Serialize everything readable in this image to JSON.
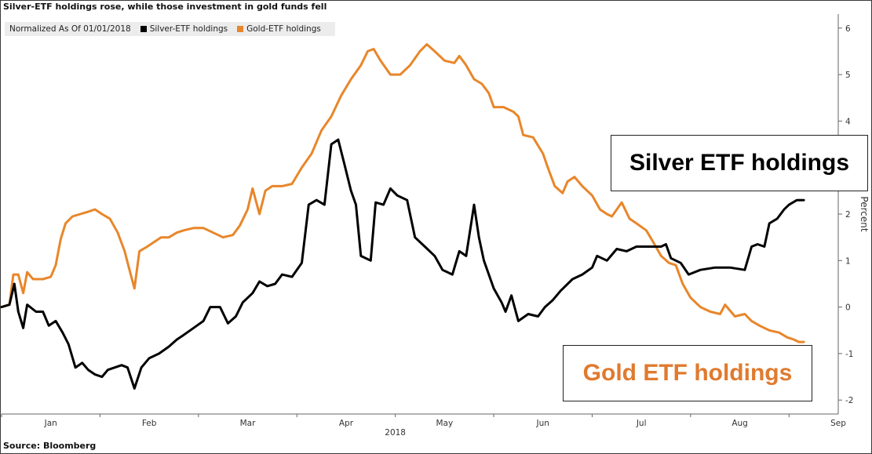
{
  "title": "Silver-ETF holdings rose, while those investment in gold funds fell",
  "legend": {
    "normalized_label": "Normalized As Of 01/01/2018",
    "items": [
      {
        "label": "Silver-ETF holdings",
        "color": "#000000"
      },
      {
        "label": "Gold-ETF holdings",
        "color": "#e8862a"
      }
    ]
  },
  "source": "Source: Bloomberg",
  "annotations": {
    "silver_box": "Silver ETF holdings",
    "gold_box": "Gold ETF holdings"
  },
  "chart_data": {
    "type": "line",
    "title": "Silver-ETF holdings rose, while those investment in gold funds fell",
    "xlabel": "2018",
    "ylabel": "Percent",
    "x_tick_labels": [
      "Jan",
      "Feb",
      "Mar",
      "Apr",
      "May",
      "Jun",
      "Jul",
      "Aug",
      "Sep"
    ],
    "x_unit": "month index (0 = 01/01/2018)",
    "xlim": [
      0,
      8.5
    ],
    "ylim": [
      -2.3,
      6.3
    ],
    "y_ticks": [
      -2,
      -1,
      0,
      1,
      2,
      3,
      4,
      5,
      6
    ],
    "y_axis_side": "right",
    "grid": false,
    "legend_position": "top-left",
    "series": [
      {
        "name": "Silver-ETF holdings",
        "color": "#000000",
        "points": [
          [
            0.0,
            0.0
          ],
          [
            0.08,
            0.05
          ],
          [
            0.13,
            0.5
          ],
          [
            0.17,
            -0.1
          ],
          [
            0.22,
            -0.45
          ],
          [
            0.26,
            0.05
          ],
          [
            0.35,
            -0.1
          ],
          [
            0.42,
            -0.1
          ],
          [
            0.48,
            -0.4
          ],
          [
            0.55,
            -0.3
          ],
          [
            0.62,
            -0.55
          ],
          [
            0.68,
            -0.8
          ],
          [
            0.75,
            -1.3
          ],
          [
            0.82,
            -1.2
          ],
          [
            0.88,
            -1.35
          ],
          [
            0.95,
            -1.45
          ],
          [
            1.02,
            -1.5
          ],
          [
            1.08,
            -1.35
          ],
          [
            1.15,
            -1.3
          ],
          [
            1.22,
            -1.25
          ],
          [
            1.28,
            -1.3
          ],
          [
            1.35,
            -1.75
          ],
          [
            1.42,
            -1.3
          ],
          [
            1.5,
            -1.1
          ],
          [
            1.6,
            -1.0
          ],
          [
            1.7,
            -0.85
          ],
          [
            1.78,
            -0.7
          ],
          [
            1.85,
            -0.6
          ],
          [
            1.95,
            -0.45
          ],
          [
            2.05,
            -0.3
          ],
          [
            2.12,
            0.0
          ],
          [
            2.22,
            0.0
          ],
          [
            2.3,
            -0.35
          ],
          [
            2.38,
            -0.2
          ],
          [
            2.45,
            0.1
          ],
          [
            2.55,
            0.3
          ],
          [
            2.62,
            0.55
          ],
          [
            2.7,
            0.45
          ],
          [
            2.78,
            0.5
          ],
          [
            2.85,
            0.7
          ],
          [
            2.95,
            0.65
          ],
          [
            3.05,
            0.95
          ],
          [
            3.12,
            2.2
          ],
          [
            3.2,
            2.3
          ],
          [
            3.28,
            2.2
          ],
          [
            3.35,
            3.5
          ],
          [
            3.42,
            3.6
          ],
          [
            3.48,
            3.1
          ],
          [
            3.55,
            2.5
          ],
          [
            3.6,
            2.2
          ],
          [
            3.65,
            1.1
          ],
          [
            3.75,
            1.0
          ],
          [
            3.8,
            2.25
          ],
          [
            3.88,
            2.2
          ],
          [
            3.95,
            2.55
          ],
          [
            4.02,
            2.4
          ],
          [
            4.12,
            2.3
          ],
          [
            4.2,
            1.5
          ],
          [
            4.3,
            1.3
          ],
          [
            4.4,
            1.1
          ],
          [
            4.48,
            0.8
          ],
          [
            4.58,
            0.7
          ],
          [
            4.65,
            1.2
          ],
          [
            4.72,
            1.1
          ],
          [
            4.8,
            2.2
          ],
          [
            4.85,
            1.5
          ],
          [
            4.9,
            1.0
          ],
          [
            5.0,
            0.4
          ],
          [
            5.08,
            0.1
          ],
          [
            5.12,
            -0.1
          ],
          [
            5.18,
            0.25
          ],
          [
            5.25,
            -0.3
          ],
          [
            5.35,
            -0.15
          ],
          [
            5.45,
            -0.2
          ],
          [
            5.52,
            0.0
          ],
          [
            5.6,
            0.15
          ],
          [
            5.68,
            0.35
          ],
          [
            5.8,
            0.6
          ],
          [
            5.9,
            0.7
          ],
          [
            6.0,
            0.85
          ],
          [
            6.05,
            1.1
          ],
          [
            6.15,
            1.0
          ],
          [
            6.25,
            1.25
          ],
          [
            6.35,
            1.2
          ],
          [
            6.45,
            1.3
          ],
          [
            6.6,
            1.3
          ],
          [
            6.7,
            1.3
          ],
          [
            6.75,
            1.35
          ],
          [
            6.8,
            1.05
          ],
          [
            6.9,
            0.95
          ],
          [
            6.98,
            0.7
          ],
          [
            7.1,
            0.8
          ],
          [
            7.25,
            0.85
          ],
          [
            7.4,
            0.85
          ],
          [
            7.55,
            0.8
          ],
          [
            7.62,
            1.3
          ],
          [
            7.68,
            1.35
          ],
          [
            7.75,
            1.3
          ],
          [
            7.8,
            1.8
          ],
          [
            7.88,
            1.9
          ],
          [
            7.95,
            2.1
          ],
          [
            8.0,
            2.2
          ],
          [
            8.08,
            2.3
          ],
          [
            8.15,
            2.3
          ]
        ]
      },
      {
        "name": "Gold-ETF holdings",
        "color": "#e8862a",
        "points": [
          [
            0.0,
            0.0
          ],
          [
            0.08,
            0.05
          ],
          [
            0.12,
            0.7
          ],
          [
            0.17,
            0.7
          ],
          [
            0.22,
            0.3
          ],
          [
            0.26,
            0.75
          ],
          [
            0.32,
            0.6
          ],
          [
            0.42,
            0.6
          ],
          [
            0.5,
            0.65
          ],
          [
            0.55,
            0.9
          ],
          [
            0.6,
            1.45
          ],
          [
            0.65,
            1.8
          ],
          [
            0.72,
            1.95
          ],
          [
            0.8,
            2.0
          ],
          [
            0.88,
            2.05
          ],
          [
            0.95,
            2.1
          ],
          [
            1.02,
            2.0
          ],
          [
            1.1,
            1.9
          ],
          [
            1.18,
            1.6
          ],
          [
            1.25,
            1.2
          ],
          [
            1.3,
            0.8
          ],
          [
            1.35,
            0.4
          ],
          [
            1.4,
            1.2
          ],
          [
            1.48,
            1.3
          ],
          [
            1.55,
            1.4
          ],
          [
            1.62,
            1.5
          ],
          [
            1.7,
            1.5
          ],
          [
            1.78,
            1.6
          ],
          [
            1.85,
            1.65
          ],
          [
            1.95,
            1.7
          ],
          [
            2.05,
            1.7
          ],
          [
            2.15,
            1.6
          ],
          [
            2.25,
            1.5
          ],
          [
            2.35,
            1.55
          ],
          [
            2.42,
            1.75
          ],
          [
            2.5,
            2.1
          ],
          [
            2.55,
            2.55
          ],
          [
            2.62,
            2.0
          ],
          [
            2.68,
            2.5
          ],
          [
            2.75,
            2.6
          ],
          [
            2.85,
            2.6
          ],
          [
            2.95,
            2.65
          ],
          [
            3.05,
            3.0
          ],
          [
            3.15,
            3.3
          ],
          [
            3.25,
            3.8
          ],
          [
            3.35,
            4.1
          ],
          [
            3.45,
            4.55
          ],
          [
            3.55,
            4.9
          ],
          [
            3.65,
            5.2
          ],
          [
            3.72,
            5.5
          ],
          [
            3.78,
            5.55
          ],
          [
            3.85,
            5.3
          ],
          [
            3.95,
            5.0
          ],
          [
            4.05,
            5.0
          ],
          [
            4.15,
            5.2
          ],
          [
            4.25,
            5.5
          ],
          [
            4.32,
            5.65
          ],
          [
            4.4,
            5.5
          ],
          [
            4.5,
            5.3
          ],
          [
            4.6,
            5.25
          ],
          [
            4.65,
            5.4
          ],
          [
            4.72,
            5.2
          ],
          [
            4.8,
            4.9
          ],
          [
            4.88,
            4.8
          ],
          [
            4.95,
            4.6
          ],
          [
            5.0,
            4.3
          ],
          [
            5.1,
            4.3
          ],
          [
            5.2,
            4.2
          ],
          [
            5.25,
            4.1
          ],
          [
            5.3,
            3.7
          ],
          [
            5.4,
            3.65
          ],
          [
            5.5,
            3.3
          ],
          [
            5.55,
            3.0
          ],
          [
            5.62,
            2.6
          ],
          [
            5.7,
            2.45
          ],
          [
            5.75,
            2.7
          ],
          [
            5.82,
            2.8
          ],
          [
            5.9,
            2.6
          ],
          [
            6.0,
            2.4
          ],
          [
            6.08,
            2.1
          ],
          [
            6.15,
            2.0
          ],
          [
            6.2,
            1.95
          ],
          [
            6.3,
            2.25
          ],
          [
            6.38,
            1.9
          ],
          [
            6.45,
            1.8
          ],
          [
            6.55,
            1.65
          ],
          [
            6.62,
            1.4
          ],
          [
            6.7,
            1.1
          ],
          [
            6.78,
            0.95
          ],
          [
            6.85,
            0.9
          ],
          [
            6.92,
            0.5
          ],
          [
            7.0,
            0.2
          ],
          [
            7.1,
            0.0
          ],
          [
            7.2,
            -0.1
          ],
          [
            7.3,
            -0.15
          ],
          [
            7.35,
            0.05
          ],
          [
            7.45,
            -0.2
          ],
          [
            7.55,
            -0.15
          ],
          [
            7.62,
            -0.3
          ],
          [
            7.7,
            -0.4
          ],
          [
            7.8,
            -0.5
          ],
          [
            7.9,
            -0.55
          ],
          [
            7.98,
            -0.65
          ],
          [
            8.05,
            -0.7
          ],
          [
            8.1,
            -0.75
          ],
          [
            8.15,
            -0.75
          ]
        ]
      }
    ]
  }
}
